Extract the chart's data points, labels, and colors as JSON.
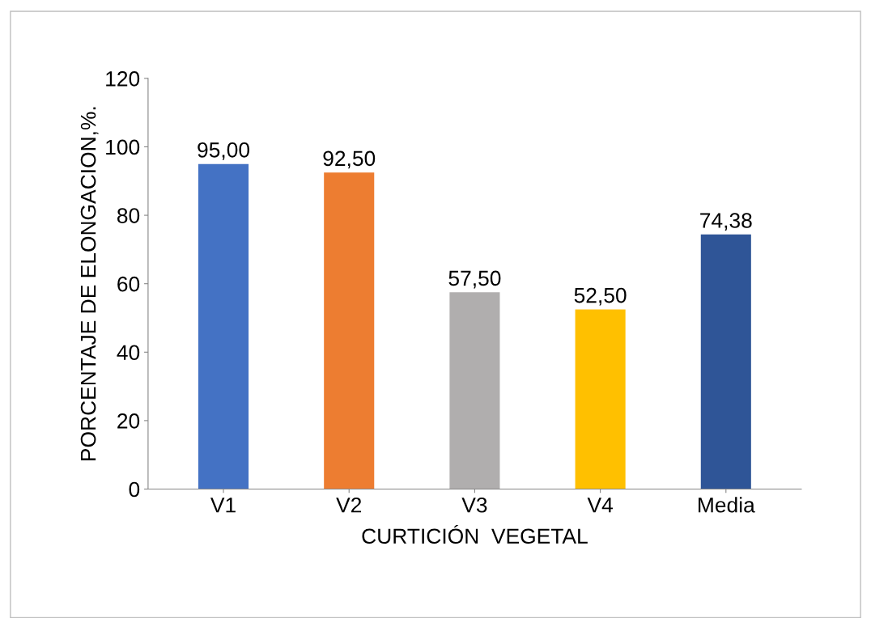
{
  "chart_data": {
    "type": "bar",
    "xlabel": "CURTICIÓN  VEGETAL",
    "ylabel": "PORCENTAJE DE ELONGACION,%.",
    "categories": [
      "V1",
      "V2",
      "V3",
      "V4",
      "Media"
    ],
    "values": [
      95.0,
      92.5,
      57.5,
      52.5,
      74.38
    ],
    "colors": [
      "#4472c4",
      "#ed7d31",
      "#b0aeae",
      "#ffc000",
      "#2f5597"
    ],
    "value_labels": [
      "95,00",
      "92,50",
      "57,50",
      "52,50",
      "74,38"
    ],
    "ylim": [
      0,
      120
    ],
    "yticks": [
      0,
      20,
      40,
      60,
      80,
      100,
      120
    ],
    "grid": false
  }
}
